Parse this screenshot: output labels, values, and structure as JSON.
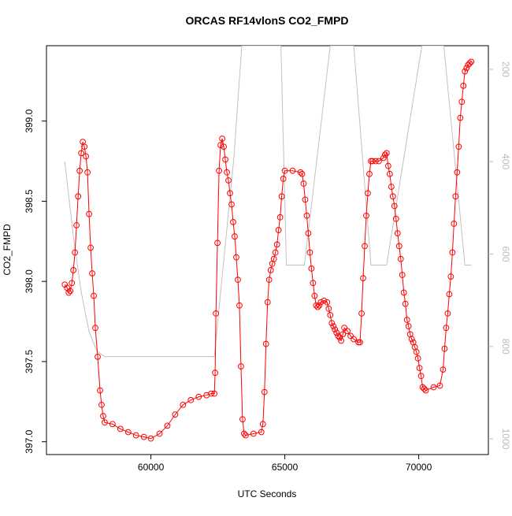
{
  "chart_data": {
    "type": "line",
    "title": "ORCAS RF14vlonS CO2_FMPD",
    "xlabel": "UTC Seconds",
    "ylabel": "CO2_FMPD",
    "xlim": [
      56100,
      72600
    ],
    "xticks": [
      60000,
      65000,
      70000
    ],
    "ylim": [
      396.92,
      399.47
    ],
    "yticks": [
      {
        "value": 397,
        "label": "397.0"
      },
      {
        "value": 397.5,
        "label": "397.5"
      },
      {
        "value": 398,
        "label": "398.0"
      },
      {
        "value": 398.5,
        "label": "398.5"
      },
      {
        "value": 399,
        "label": "399.0"
      }
    ],
    "y2lim": [
      149,
      1034
    ],
    "y2_reversed": true,
    "y2ticks": [
      200,
      400,
      600,
      800,
      1000
    ],
    "series": [
      {
        "name": "CO2_FMPD",
        "color": "#ff0000",
        "markers": true,
        "x": [
          56784,
          56871,
          56930,
          56988,
          57047,
          57105,
          57164,
          57222,
          57281,
          57339,
          57398,
          57456,
          57515,
          57573,
          57632,
          57690,
          57749,
          57807,
          57866,
          57924,
          58012,
          58100,
          58158,
          58217,
          58275,
          58567,
          58860,
          59152,
          59444,
          59737,
          60000,
          60322,
          60614,
          60906,
          61199,
          61491,
          61784,
          62076,
          62251,
          62368,
          62398,
          62427,
          62485,
          62544,
          62602,
          62661,
          62719,
          62778,
          62836,
          62895,
          62953,
          63012,
          63070,
          63129,
          63187,
          63246,
          63304,
          63363,
          63421,
          63480,
          63538,
          63830,
          64123,
          64181,
          64240,
          64298,
          64357,
          64415,
          64474,
          64532,
          64591,
          64649,
          64708,
          64766,
          64825,
          64883,
          64942,
          65000,
          65292,
          65585,
          65643,
          65702,
          65760,
          65819,
          65877,
          65936,
          65994,
          66053,
          66111,
          66170,
          66228,
          66287,
          66345,
          66462,
          66579,
          66637,
          66696,
          66754,
          66813,
          66871,
          66930,
          66988,
          67047,
          67105,
          67164,
          67222,
          67339,
          67456,
          67573,
          67749,
          67807,
          67866,
          67924,
          67983,
          68041,
          68100,
          68158,
          68216,
          68275,
          68392,
          68509,
          68684,
          68743,
          68801,
          68860,
          68918,
          68977,
          69035,
          69094,
          69152,
          69211,
          69269,
          69328,
          69386,
          69445,
          69503,
          69562,
          69620,
          69679,
          69737,
          69795,
          69854,
          69912,
          69971,
          70029,
          70088,
          70146,
          70205,
          70263,
          70556,
          70790,
          70907,
          70965,
          71024,
          71082,
          71141,
          71199,
          71258,
          71316,
          71375,
          71433,
          71492,
          71550,
          71609,
          71667,
          71725,
          71784,
          71843,
          71901,
          71959
        ],
        "values": [
          397.98,
          397.96,
          397.93,
          397.94,
          397.99,
          398.07,
          398.18,
          398.35,
          398.53,
          398.69,
          398.8,
          398.87,
          398.84,
          398.78,
          398.68,
          398.42,
          398.21,
          398.05,
          397.91,
          397.71,
          397.53,
          397.32,
          397.23,
          397.16,
          397.12,
          397.11,
          397.08,
          397.06,
          397.04,
          397.03,
          397.02,
          397.05,
          397.1,
          397.17,
          397.23,
          397.26,
          397.28,
          397.29,
          397.3,
          397.3,
          397.43,
          397.8,
          398.24,
          398.69,
          398.85,
          398.89,
          398.84,
          398.76,
          398.68,
          398.63,
          398.55,
          398.48,
          398.37,
          398.28,
          398.15,
          398.01,
          397.85,
          397.47,
          397.14,
          397.05,
          397.04,
          397.05,
          397.06,
          397.11,
          397.31,
          397.61,
          397.87,
          398.01,
          398.07,
          398.11,
          398.14,
          398.18,
          398.23,
          398.32,
          398.4,
          398.53,
          398.64,
          398.69,
          398.69,
          398.68,
          398.67,
          398.61,
          398.51,
          398.41,
          398.3,
          398.18,
          398.08,
          397.99,
          397.91,
          397.85,
          397.84,
          397.85,
          397.87,
          397.88,
          397.87,
          397.83,
          397.79,
          397.74,
          397.72,
          397.7,
          397.68,
          397.66,
          397.65,
          397.63,
          397.67,
          397.71,
          397.69,
          397.66,
          397.64,
          397.62,
          397.62,
          397.8,
          398.02,
          398.22,
          398.41,
          398.55,
          398.67,
          398.75,
          398.75,
          398.75,
          398.75,
          398.77,
          398.79,
          398.8,
          398.72,
          398.67,
          398.59,
          398.53,
          398.47,
          398.39,
          398.3,
          398.22,
          398.14,
          398.04,
          397.93,
          397.86,
          397.76,
          397.72,
          397.67,
          397.64,
          397.62,
          397.59,
          397.56,
          397.52,
          397.46,
          397.41,
          397.34,
          397.33,
          397.32,
          397.34,
          397.35,
          397.45,
          397.58,
          397.71,
          397.8,
          397.92,
          398.03,
          398.18,
          398.36,
          398.53,
          398.68,
          398.84,
          399.02,
          399.12,
          399.22,
          399.31,
          399.33,
          399.35,
          399.36,
          399.37
        ]
      },
      {
        "color": "#c0c0c0",
        "axis": "y2",
        "x": [
          56784,
          57105,
          57398,
          57690,
          57983,
          58275,
          62368,
          62661,
          63099,
          63392,
          64854,
          65058,
          65731,
          66696,
          67573,
          68216,
          68801,
          70117,
          70936,
          71725,
          71959
        ],
        "values": [
          400,
          562,
          682,
          768,
          810,
          822,
          822,
          648,
          391,
          149,
          149,
          624,
          624,
          149,
          149,
          624,
          624,
          149,
          149,
          624,
          624
        ]
      }
    ]
  }
}
